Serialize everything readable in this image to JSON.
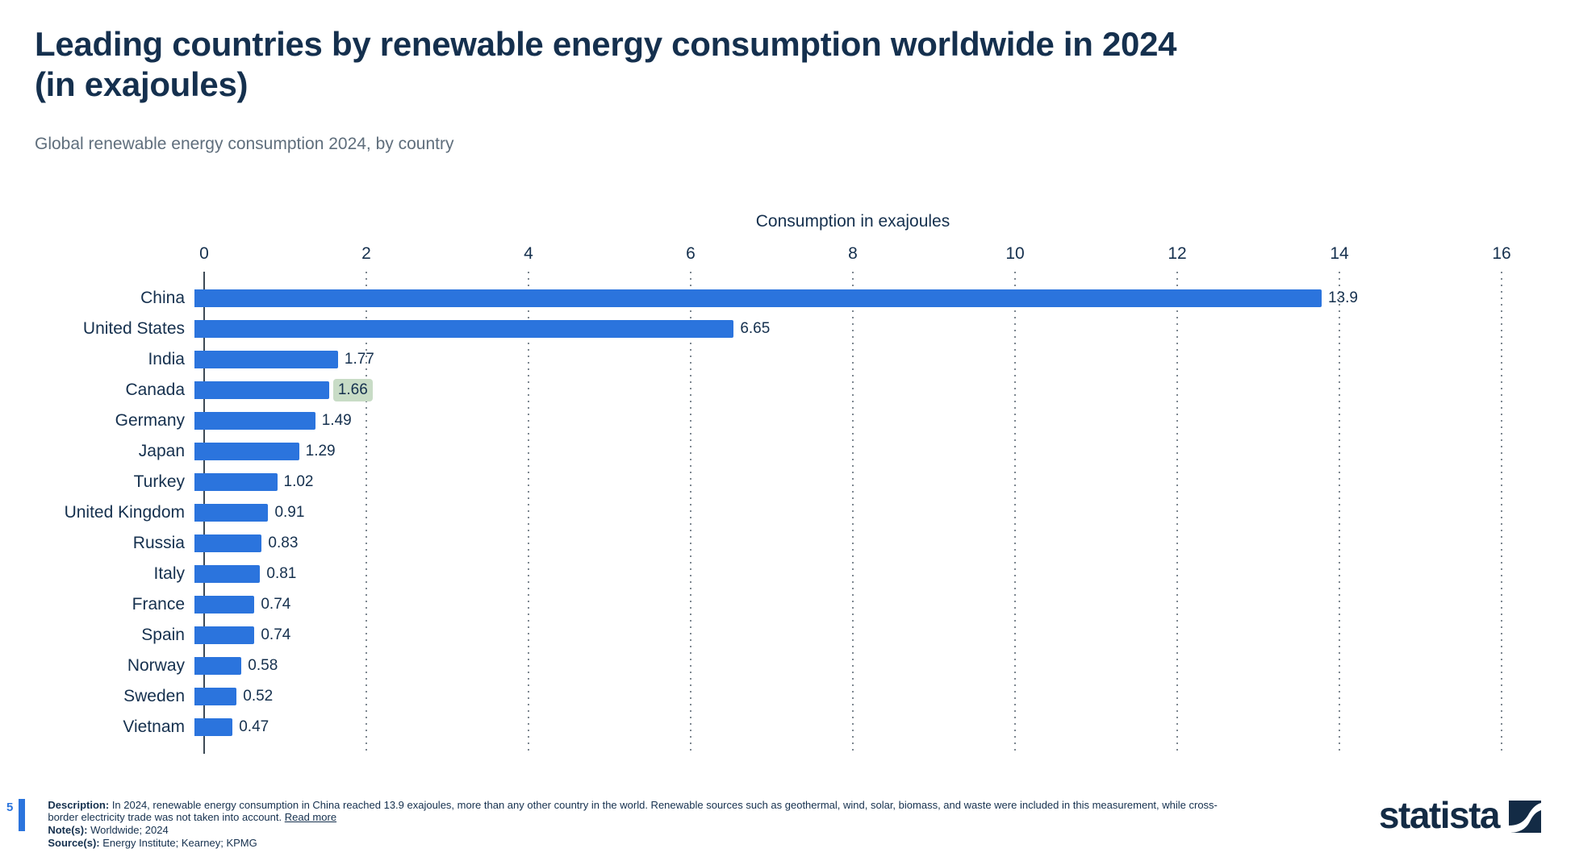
{
  "header": {
    "title": "Leading countries by renewable energy consumption worldwide in 2024\n(in exajoules)",
    "subtitle": "Global renewable energy consumption 2024, by country"
  },
  "chart_data": {
    "type": "bar",
    "orientation": "horizontal",
    "axis_title": "Consumption in exajoules",
    "categories": [
      "China",
      "United States",
      "India",
      "Canada",
      "Germany",
      "Japan",
      "Turkey",
      "United Kingdom",
      "Russia",
      "Italy",
      "France",
      "Spain",
      "Norway",
      "Sweden",
      "Vietnam"
    ],
    "values": [
      13.9,
      6.65,
      1.77,
      1.66,
      1.49,
      1.29,
      1.02,
      0.91,
      0.83,
      0.81,
      0.74,
      0.74,
      0.58,
      0.52,
      0.47
    ],
    "value_labels": [
      "13.9",
      "6.65",
      "1.77",
      "1.66",
      "1.49",
      "1.29",
      "1.02",
      "0.91",
      "0.83",
      "0.81",
      "0.74",
      "0.74",
      "0.58",
      "0.52",
      "0.47"
    ],
    "highlighted_index": 3,
    "xlim": [
      0,
      16
    ],
    "x_ticks": [
      0,
      2,
      4,
      6,
      8,
      10,
      12,
      14,
      16
    ],
    "grid": "vertical-dotted",
    "legend": "none",
    "bar_color": "#2b74dd",
    "highlight_color": "#c8dcc6"
  },
  "footer": {
    "page_number": "5",
    "description_label": "Description:",
    "description_text": "In 2024, renewable energy consumption in China reached 13.9 exajoules, more than any other country in the world. Renewable sources such as geothermal, wind, solar, biomass, and waste were included in this measurement, while cross-border electricity trade was not taken into account.",
    "read_more_label": "Read more",
    "notes_label": "Note(s):",
    "notes_text": "Worldwide; 2024",
    "sources_label": "Source(s):",
    "sources_text": "Energy Institute; Kearney; KPMG",
    "brand": "statista"
  }
}
